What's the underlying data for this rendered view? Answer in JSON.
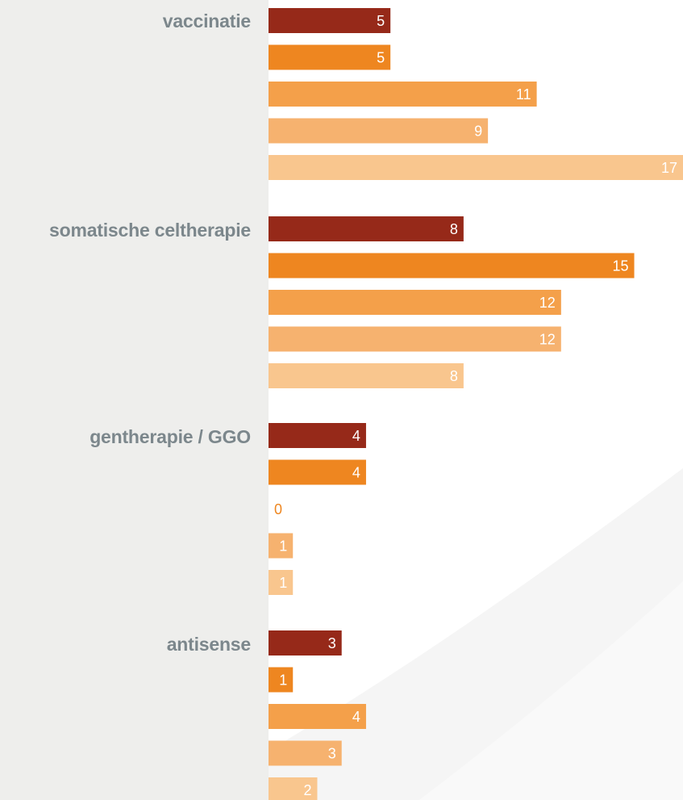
{
  "chart_data": {
    "type": "bar",
    "orientation": "horizontal",
    "categories": [
      "vaccinatie",
      "somatische celtherapie",
      "gentherapie / GGO",
      "antisense"
    ],
    "series": [
      {
        "values": [
          5,
          8,
          4,
          3
        ],
        "color": "#962919"
      },
      {
        "values": [
          5,
          15,
          4,
          1
        ],
        "color": "#ee8620"
      },
      {
        "values": [
          11,
          12,
          0,
          4
        ],
        "color": "#f4a04a"
      },
      {
        "values": [
          9,
          12,
          1,
          3
        ],
        "color": "#f6b26f"
      },
      {
        "values": [
          17,
          8,
          1,
          2
        ],
        "color": "#f9c68e"
      }
    ],
    "xlim": [
      0,
      17
    ],
    "grid": false,
    "legend": "none",
    "value_labels": true
  },
  "colors": {
    "label_panel": "#eeeeec",
    "category_text": "#7c878c",
    "value_text_on_bar": "#ffffff",
    "zero_value_text": "#ee8620"
  }
}
